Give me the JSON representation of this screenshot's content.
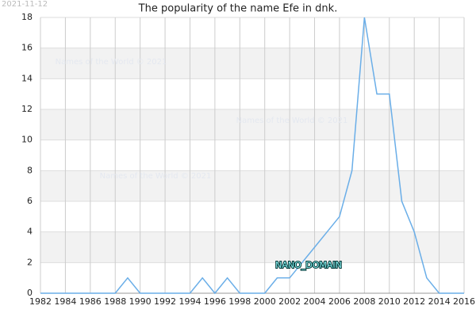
{
  "chart_data": {
    "type": "line",
    "title": "The popularity of the name Efe in dnk.",
    "date": "2021-11-12",
    "watermark": "Names of the World © 2021",
    "annotation": "NANO_DOMAIN",
    "x": [
      1982,
      1983,
      1984,
      1985,
      1986,
      1987,
      1988,
      1989,
      1990,
      1991,
      1992,
      1993,
      1994,
      1995,
      1996,
      1997,
      1998,
      1999,
      2000,
      2001,
      2002,
      2003,
      2004,
      2005,
      2006,
      2007,
      2008,
      2009,
      2010,
      2011,
      2012,
      2013,
      2014,
      2015,
      2016
    ],
    "series": [
      {
        "color": "#6aaee8",
        "values": [
          0,
          0,
          0,
          0,
          0,
          0,
          0,
          1,
          0,
          0,
          0,
          0,
          0,
          1,
          0,
          1,
          0,
          0,
          0,
          1,
          1,
          2,
          3,
          4,
          5,
          8,
          18,
          13,
          13,
          6,
          4,
          1,
          0,
          0,
          0
        ]
      }
    ],
    "xlim": [
      1982,
      2016
    ],
    "xticks": [
      1982,
      1984,
      1986,
      1988,
      1990,
      1992,
      1994,
      1996,
      1998,
      2000,
      2002,
      2004,
      2006,
      2008,
      2010,
      2012,
      2014,
      2016
    ],
    "ylim": [
      0,
      18
    ],
    "yticks": [
      0,
      2,
      4,
      6,
      8,
      10,
      12,
      14,
      16,
      18
    ],
    "grid": true
  }
}
